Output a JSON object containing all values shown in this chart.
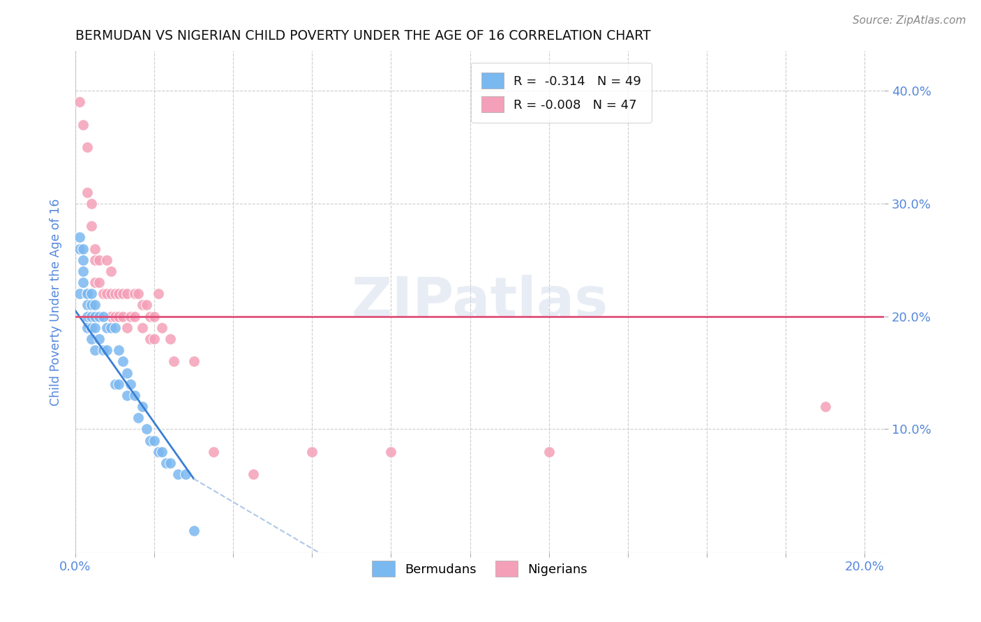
{
  "title": "BERMUDAN VS NIGERIAN CHILD POVERTY UNDER THE AGE OF 16 CORRELATION CHART",
  "source": "Source: ZipAtlas.com",
  "ylabel": "Child Poverty Under the Age of 16",
  "bermudans_color": "#7ab8f0",
  "nigerians_color": "#f4a0b8",
  "trend_bermudans_color": "#3a7fd4",
  "trend_nigerians_color": "#e0507a",
  "trend_dashed_color": "#b0c8e8",
  "watermark": "ZIPatlas",
  "axis_color": "#5588dd",
  "grid_color": "#cccccc",
  "bermudans_x": [
    0.001,
    0.001,
    0.001,
    0.002,
    0.002,
    0.002,
    0.002,
    0.003,
    0.003,
    0.003,
    0.003,
    0.003,
    0.004,
    0.004,
    0.004,
    0.004,
    0.004,
    0.005,
    0.005,
    0.005,
    0.005,
    0.006,
    0.006,
    0.007,
    0.007,
    0.008,
    0.008,
    0.009,
    0.01,
    0.01,
    0.011,
    0.011,
    0.012,
    0.013,
    0.013,
    0.014,
    0.015,
    0.016,
    0.017,
    0.018,
    0.019,
    0.02,
    0.021,
    0.022,
    0.023,
    0.024,
    0.026,
    0.028,
    0.03
  ],
  "bermudans_y": [
    0.27,
    0.26,
    0.22,
    0.26,
    0.25,
    0.24,
    0.23,
    0.22,
    0.22,
    0.21,
    0.2,
    0.19,
    0.22,
    0.21,
    0.2,
    0.19,
    0.18,
    0.21,
    0.2,
    0.19,
    0.17,
    0.2,
    0.18,
    0.2,
    0.17,
    0.19,
    0.17,
    0.19,
    0.19,
    0.14,
    0.17,
    0.14,
    0.16,
    0.15,
    0.13,
    0.14,
    0.13,
    0.11,
    0.12,
    0.1,
    0.09,
    0.09,
    0.08,
    0.08,
    0.07,
    0.07,
    0.06,
    0.06,
    0.01
  ],
  "nigerians_x": [
    0.001,
    0.002,
    0.003,
    0.003,
    0.004,
    0.004,
    0.005,
    0.005,
    0.005,
    0.006,
    0.006,
    0.007,
    0.008,
    0.008,
    0.009,
    0.009,
    0.009,
    0.01,
    0.01,
    0.011,
    0.011,
    0.012,
    0.012,
    0.013,
    0.013,
    0.014,
    0.015,
    0.015,
    0.016,
    0.017,
    0.017,
    0.018,
    0.019,
    0.019,
    0.02,
    0.02,
    0.021,
    0.022,
    0.024,
    0.025,
    0.03,
    0.035,
    0.045,
    0.06,
    0.08,
    0.12,
    0.19
  ],
  "nigerians_y": [
    0.39,
    0.37,
    0.35,
    0.31,
    0.3,
    0.28,
    0.26,
    0.25,
    0.23,
    0.25,
    0.23,
    0.22,
    0.25,
    0.22,
    0.24,
    0.22,
    0.2,
    0.22,
    0.2,
    0.22,
    0.2,
    0.22,
    0.2,
    0.22,
    0.19,
    0.2,
    0.22,
    0.2,
    0.22,
    0.21,
    0.19,
    0.21,
    0.2,
    0.18,
    0.2,
    0.18,
    0.22,
    0.19,
    0.18,
    0.16,
    0.16,
    0.08,
    0.06,
    0.08,
    0.08,
    0.08,
    0.12
  ],
  "trend_b_x0": 0.0,
  "trend_b_y0": 0.205,
  "trend_b_x1": 0.03,
  "trend_b_y1": 0.056,
  "trend_b_dash_x1": 0.062,
  "trend_b_dash_y1": -0.01,
  "trend_n_x0": 0.0,
  "trend_n_y0": 0.2,
  "trend_n_x1": 0.205,
  "trend_n_y1": 0.2,
  "xlim": [
    0.0,
    0.205
  ],
  "ylim": [
    -0.01,
    0.435
  ],
  "yticks": [
    0.1,
    0.2,
    0.3,
    0.4
  ],
  "figsize": [
    14.06,
    8.92
  ],
  "dpi": 100
}
